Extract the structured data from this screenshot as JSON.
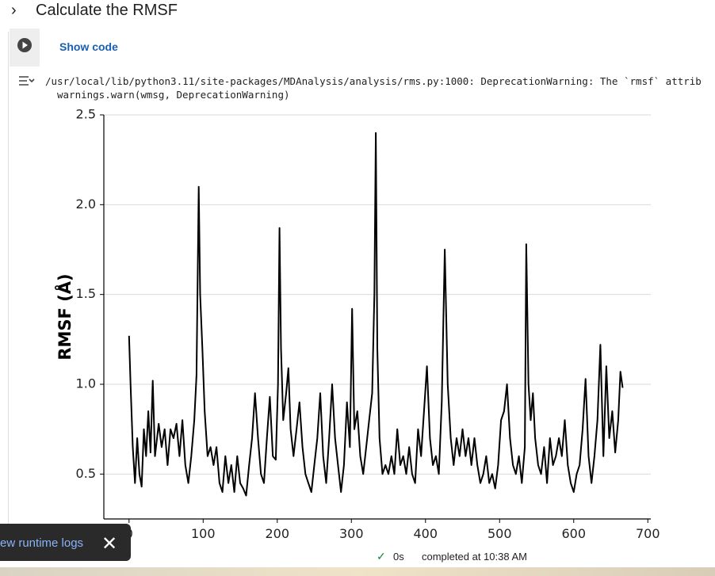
{
  "header": {
    "title": "Calculate the RMSF"
  },
  "cell": {
    "show_code": "Show code",
    "output_lines": [
      "/usr/local/lib/python3.11/site-packages/MDAnalysis/analysis/rms.py:1000: DeprecationWarning: The `rmsf` attrib",
      "warnings.warn(wmsg, DeprecationWarning)"
    ]
  },
  "chart_data": {
    "type": "line",
    "y_label": "RMSF (Å)",
    "xlim": [
      -34,
      704
    ],
    "ylim": [
      0.25,
      2.5
    ],
    "xticks": [
      0,
      100,
      200,
      300,
      400,
      500,
      600,
      700
    ],
    "yticks": [
      {
        "value": 0.5,
        "label": "0.5"
      },
      {
        "value": 1,
        "label": "1.0"
      },
      {
        "value": 1.5,
        "label": "1.5"
      },
      {
        "value": 2,
        "label": "2.0"
      },
      {
        "value": 2.5,
        "label": "2.5"
      }
    ],
    "grid": true,
    "color": "#000000",
    "x": [
      0,
      2,
      5,
      8,
      11,
      14,
      17,
      20,
      23,
      26,
      29,
      32,
      35,
      40,
      44,
      48,
      52,
      56,
      60,
      64,
      68,
      72,
      76,
      80,
      84,
      88,
      91,
      94,
      96,
      99,
      102,
      106,
      110,
      114,
      118,
      122,
      126,
      130,
      134,
      138,
      142,
      146,
      150,
      154,
      158,
      162,
      166,
      170,
      174,
      178,
      182,
      186,
      190,
      194,
      198,
      201,
      203,
      205,
      208,
      212,
      215,
      218,
      222,
      226,
      230,
      234,
      238,
      242,
      246,
      250,
      254,
      258,
      262,
      266,
      270,
      274,
      278,
      282,
      286,
      290,
      294,
      298,
      301,
      304,
      308,
      312,
      316,
      320,
      324,
      328,
      331,
      333,
      335,
      338,
      342,
      346,
      350,
      354,
      358,
      362,
      366,
      370,
      374,
      378,
      382,
      386,
      390,
      394,
      398,
      402,
      406,
      410,
      414,
      418,
      422,
      426,
      430,
      434,
      438,
      442,
      446,
      450,
      454,
      458,
      462,
      466,
      470,
      474,
      478,
      482,
      486,
      490,
      494,
      498,
      502,
      506,
      510,
      514,
      518,
      522,
      526,
      530,
      534,
      536,
      539,
      542,
      545,
      548,
      552,
      556,
      560,
      564,
      568,
      572,
      576,
      580,
      584,
      588,
      592,
      596,
      600,
      604,
      608,
      612,
      616,
      620,
      624,
      628,
      632,
      636,
      640,
      644,
      648,
      652,
      656,
      660,
      663,
      666
    ],
    "values": [
      1.27,
      1.0,
      0.65,
      0.45,
      0.7,
      0.5,
      0.43,
      0.75,
      0.6,
      0.85,
      0.62,
      1.02,
      0.6,
      0.78,
      0.65,
      0.75,
      0.55,
      0.75,
      0.7,
      0.78,
      0.6,
      0.8,
      0.55,
      0.45,
      0.6,
      0.8,
      1.05,
      2.1,
      1.5,
      1.2,
      0.85,
      0.6,
      0.65,
      0.55,
      0.65,
      0.45,
      0.4,
      0.6,
      0.45,
      0.55,
      0.4,
      0.6,
      0.45,
      0.42,
      0.38,
      0.55,
      0.7,
      0.95,
      0.7,
      0.5,
      0.45,
      0.7,
      0.93,
      0.6,
      0.58,
      1.0,
      1.87,
      1.2,
      0.8,
      0.95,
      1.09,
      0.75,
      0.6,
      0.75,
      0.9,
      0.65,
      0.5,
      0.45,
      0.4,
      0.55,
      0.7,
      0.95,
      0.6,
      0.45,
      0.7,
      1.0,
      0.7,
      0.55,
      0.4,
      0.55,
      0.9,
      0.65,
      1.42,
      0.75,
      0.85,
      0.6,
      0.5,
      0.65,
      0.8,
      0.95,
      1.5,
      2.4,
      1.2,
      0.7,
      0.5,
      0.55,
      0.5,
      0.6,
      0.5,
      0.75,
      0.55,
      0.6,
      0.5,
      0.65,
      0.5,
      0.45,
      0.75,
      0.6,
      0.85,
      1.1,
      0.7,
      0.55,
      0.6,
      0.5,
      0.9,
      1.75,
      1.0,
      0.7,
      0.55,
      0.7,
      0.6,
      0.75,
      0.6,
      0.7,
      0.55,
      0.7,
      0.55,
      0.45,
      0.5,
      0.6,
      0.45,
      0.5,
      0.42,
      0.55,
      0.8,
      0.85,
      1.0,
      0.7,
      0.55,
      0.5,
      0.6,
      0.45,
      0.65,
      1.78,
      1.0,
      0.8,
      0.95,
      0.7,
      0.55,
      0.5,
      0.65,
      0.45,
      0.7,
      0.55,
      0.6,
      0.7,
      0.6,
      0.8,
      0.55,
      0.45,
      0.4,
      0.5,
      0.55,
      0.75,
      1.03,
      0.6,
      0.45,
      0.6,
      0.8,
      1.22,
      0.6,
      1.1,
      0.7,
      0.85,
      0.62,
      0.8,
      1.07,
      0.98
    ]
  },
  "toast": {
    "text": "ew runtime logs"
  },
  "status": {
    "elapsed": "0s",
    "completed": "completed at 10:38 AM"
  }
}
